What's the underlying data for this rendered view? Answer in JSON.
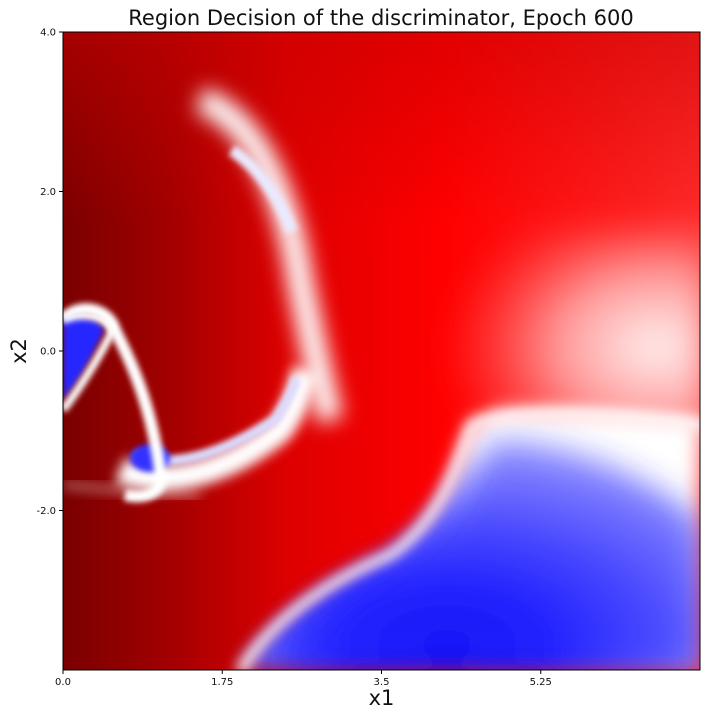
{
  "chart_data": {
    "type": "heatmap",
    "title": "Region Decision of the discriminator, Epoch 600",
    "xlabel": "x1",
    "ylabel": "x2",
    "xlim": [
      0.0,
      7.0
    ],
    "ylim": [
      -4.0,
      4.0
    ],
    "xticks": [
      0.0,
      1.75,
      3.5,
      5.25
    ],
    "xtick_labels": [
      "0.0",
      "1.75",
      "3.5",
      "5.25"
    ],
    "yticks": [
      4.0,
      2.0,
      0.0,
      -2.0
    ],
    "ytick_labels": [
      "4.0",
      "2.0",
      "0.0",
      "-2.0"
    ],
    "colormap": "seismic",
    "colors": {
      "low": "#0000ff",
      "mid": "#ffffff",
      "high": "#ff0000",
      "extreme": "#800000"
    },
    "grid": false,
    "regions": [
      {
        "name": "dark red region",
        "level": 1.0,
        "x_range": [
          0.0,
          1.5
        ],
        "y_range": [
          -4.0,
          4.0
        ]
      },
      {
        "name": "red upper region",
        "level": 0.85,
        "x_range": [
          2.0,
          7.0
        ],
        "y_range": [
          1.0,
          4.0
        ]
      },
      {
        "name": "blue lower right region",
        "level": -1.0,
        "x_range": [
          2.5,
          7.0
        ],
        "y_range": [
          -4.0,
          -1.0
        ]
      },
      {
        "name": "blue pocket left",
        "level": -0.8,
        "x_range": [
          0.0,
          0.5
        ],
        "y_range": [
          -0.6,
          0.4
        ]
      },
      {
        "name": "blue arc",
        "level": -0.5,
        "x_range": [
          0.8,
          2.9
        ],
        "y_range": [
          -1.6,
          -0.3
        ]
      },
      {
        "name": "white arc upper",
        "level": -0.1,
        "x_range": [
          1.7,
          3.2
        ],
        "y_range": [
          0.2,
          2.7
        ]
      }
    ]
  }
}
